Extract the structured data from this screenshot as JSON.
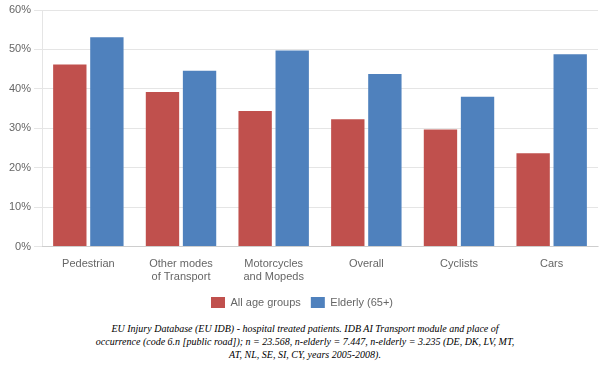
{
  "chart_data": {
    "type": "bar",
    "categories": [
      "Pedestrian",
      "Other modes\nof Transport",
      "Motorcycles\nand Mopeds",
      "Overall",
      "Cyclists",
      "Cars"
    ],
    "series": [
      {
        "name": "All age groups",
        "color": "#C0504D",
        "values": [
          0.462,
          0.392,
          0.344,
          0.323,
          0.297,
          0.237
        ]
      },
      {
        "name": "Elderly (65+)",
        "color": "#4F81BD",
        "values": [
          0.531,
          0.446,
          0.497,
          0.438,
          0.38,
          0.488
        ]
      }
    ],
    "ylim": [
      0,
      0.6
    ],
    "yticks": [
      {
        "value": 0.0,
        "label": "0%"
      },
      {
        "value": 0.1,
        "label": "10%"
      },
      {
        "value": 0.2,
        "label": "20%"
      },
      {
        "value": 0.3,
        "label": "30%"
      },
      {
        "value": 0.4,
        "label": "40%"
      },
      {
        "value": 0.5,
        "label": "50%"
      },
      {
        "value": 0.6,
        "label": "60%"
      }
    ],
    "grid": true,
    "legend": "bottom",
    "caption": [
      "EU Injury Database (EU IDB) - hospital treated patients. IDB AI Transport module and place of",
      "occurrence (code 6.n [public road]); n = 23.568, n-elderly = 7.447, n-elderly = 3.235 (DE, DK, LV, MT,",
      "AT, NL, SE, SI, CY, years 2005-2008)."
    ]
  }
}
